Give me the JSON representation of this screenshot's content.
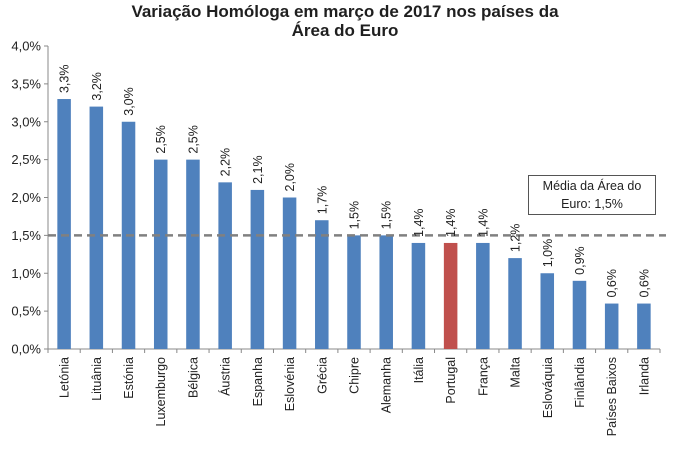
{
  "chart_data": {
    "type": "bar",
    "title_line1": "Variação Homóloga em março de 2017 nos países da",
    "title_line2": "Área do Euro",
    "categories": [
      "Letónia",
      "Lituânia",
      "Estónia",
      "Luxemburgo",
      "Bélgica",
      "Áustria",
      "Espanha",
      "Eslovénia",
      "Grécia",
      "Chipre",
      "Alemanha",
      "Itália",
      "Portugal",
      "França",
      "Malta",
      "Eslováquia",
      "Finlândia",
      "Países Baixos",
      "Irlanda"
    ],
    "values": [
      3.3,
      3.2,
      3.0,
      2.5,
      2.5,
      2.2,
      2.1,
      2.0,
      1.7,
      1.5,
      1.5,
      1.4,
      1.4,
      1.4,
      1.2,
      1.0,
      0.9,
      0.6,
      0.6
    ],
    "value_labels": [
      "3,3%",
      "3,2%",
      "3,0%",
      "2,5%",
      "2,5%",
      "2,2%",
      "2,1%",
      "2,0%",
      "1,7%",
      "1,5%",
      "1,5%",
      "1,4%",
      "1,4%",
      "1,4%",
      "1,2%",
      "1,0%",
      "0,9%",
      "0,6%",
      "0,6%"
    ],
    "highlight_category": "Portugal",
    "y_ticks": [
      0,
      0.5,
      1.0,
      1.5,
      2.0,
      2.5,
      3.0,
      3.5,
      4.0
    ],
    "y_tick_labels": [
      "0,0%",
      "0,5%",
      "1,0%",
      "1,5%",
      "2,0%",
      "2,5%",
      "3,0%",
      "3,5%",
      "4,0%"
    ],
    "ylim": [
      0,
      4.0
    ],
    "average_value": 1.5,
    "average_label_line1": "Média da Área do",
    "average_label_line2": "Euro: 1,5%",
    "bar_color": "#4f81bd",
    "highlight_color": "#c0504d",
    "average_line_color": "#808080"
  }
}
